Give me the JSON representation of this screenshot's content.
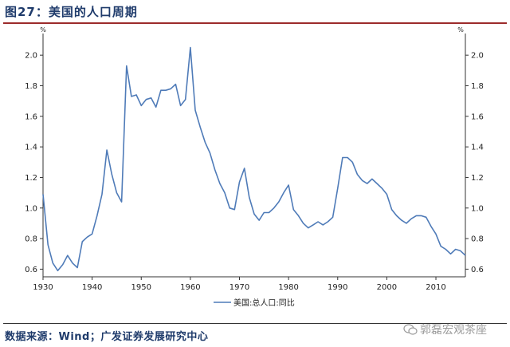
{
  "header": {
    "title": "图27：美国的人口周期"
  },
  "footer": {
    "source": "数据来源：Wind；广发证券发展研究中心",
    "watermark": "郭磊宏观茶座"
  },
  "chart_data": {
    "type": "line",
    "title": "图27：美国的人口周期",
    "xlabel": "",
    "ylabel": "%",
    "ylabel_right": "%",
    "xlim": [
      1930,
      2016
    ],
    "ylim": [
      0.55,
      2.1
    ],
    "x_ticks": [
      1930,
      1940,
      1950,
      1960,
      1970,
      1980,
      1990,
      2000,
      2010
    ],
    "y_ticks": [
      0.6,
      0.8,
      1.0,
      1.2,
      1.4,
      1.6,
      1.8,
      2.0
    ],
    "y_tick_labels": [
      "0.6",
      "0.8",
      "1.0",
      "1.2",
      "1.4",
      "1.6",
      "1.8",
      "2.0"
    ],
    "x_tick_labels": [
      "1930",
      "1940",
      "1950",
      "1960",
      "1970",
      "1980",
      "1990",
      "2000",
      "2010"
    ],
    "grid": false,
    "legend_position": "bottom-left",
    "color": "#4f7bb8",
    "series": [
      {
        "name": "美国:总人口:同比",
        "x": [
          1930,
          1931,
          1932,
          1933,
          1934,
          1935,
          1936,
          1937,
          1938,
          1939,
          1940,
          1941,
          1942,
          1943,
          1944,
          1945,
          1946,
          1947,
          1948,
          1949,
          1950,
          1951,
          1952,
          1953,
          1954,
          1955,
          1956,
          1957,
          1958,
          1959,
          1960,
          1961,
          1962,
          1963,
          1964,
          1965,
          1966,
          1967,
          1968,
          1969,
          1970,
          1971,
          1972,
          1973,
          1974,
          1975,
          1976,
          1977,
          1978,
          1979,
          1980,
          1981,
          1982,
          1983,
          1984,
          1985,
          1986,
          1987,
          1988,
          1989,
          1990,
          1991,
          1992,
          1993,
          1994,
          1995,
          1996,
          1997,
          1998,
          1999,
          2000,
          2001,
          2002,
          2003,
          2004,
          2005,
          2006,
          2007,
          2008,
          2009,
          2010,
          2011,
          2012,
          2013,
          2014,
          2015,
          2016
        ],
        "y": [
          1.09,
          0.76,
          0.64,
          0.59,
          0.63,
          0.69,
          0.64,
          0.61,
          0.78,
          0.81,
          0.83,
          0.95,
          1.09,
          1.38,
          1.22,
          1.1,
          1.04,
          1.93,
          1.73,
          1.74,
          1.67,
          1.71,
          1.72,
          1.66,
          1.77,
          1.77,
          1.78,
          1.81,
          1.67,
          1.71,
          2.05,
          1.64,
          1.53,
          1.43,
          1.36,
          1.25,
          1.16,
          1.1,
          1.0,
          0.99,
          1.17,
          1.26,
          1.07,
          0.96,
          0.92,
          0.97,
          0.97,
          1.0,
          1.04,
          1.1,
          1.15,
          0.99,
          0.95,
          0.9,
          0.87,
          0.89,
          0.91,
          0.89,
          0.91,
          0.94,
          1.13,
          1.33,
          1.33,
          1.3,
          1.22,
          1.18,
          1.16,
          1.19,
          1.16,
          1.13,
          1.09,
          0.99,
          0.95,
          0.92,
          0.9,
          0.93,
          0.95,
          0.95,
          0.94,
          0.88,
          0.83,
          0.75,
          0.73,
          0.7,
          0.73,
          0.72,
          0.69
        ]
      }
    ]
  }
}
